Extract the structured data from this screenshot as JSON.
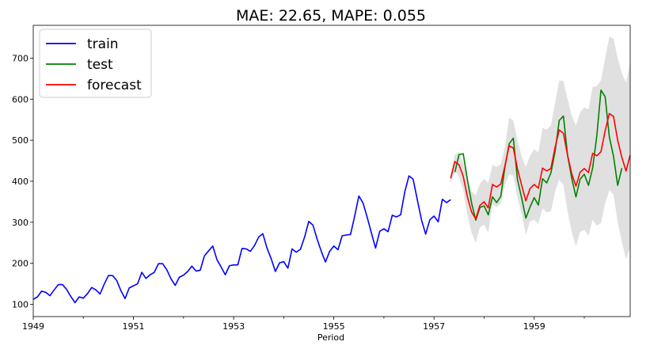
{
  "chart_data": {
    "type": "line",
    "title": "MAE: 22.65, MAPE: 0.055",
    "xlabel": "Period",
    "ylabel": "",
    "xlim": [
      1949.0,
      1960.9167
    ],
    "ylim": [
      70,
      780
    ],
    "x_ticks": [
      1949,
      1951,
      1953,
      1955,
      1957,
      1959
    ],
    "y_ticks": [
      100,
      200,
      300,
      400,
      500,
      600,
      700
    ],
    "grid": false,
    "legend": {
      "placement": "top-left",
      "entries": [
        "train",
        "test",
        "forecast"
      ]
    },
    "x_start": 1949.0,
    "x_step": 0.0833333,
    "series": [
      {
        "name": "train",
        "color": "#0000ff",
        "start_index": 0,
        "values": [
          112,
          118,
          132,
          129,
          121,
          135,
          148,
          148,
          136,
          119,
          104,
          118,
          115,
          126,
          141,
          135,
          125,
          149,
          170,
          170,
          158,
          133,
          114,
          140,
          145,
          150,
          178,
          163,
          172,
          178,
          199,
          199,
          184,
          162,
          146,
          166,
          171,
          180,
          193,
          181,
          183,
          218,
          230,
          242,
          209,
          191,
          172,
          194,
          196,
          196,
          236,
          235,
          229,
          243,
          264,
          272,
          237,
          211,
          180,
          201,
          204,
          188,
          235,
          227,
          234,
          264,
          302,
          293,
          259,
          229,
          203,
          229,
          242,
          233,
          267,
          269,
          270,
          315,
          364,
          347,
          312,
          274,
          237,
          278,
          284,
          277,
          317,
          313,
          318,
          374,
          413,
          405,
          355,
          306,
          271,
          306,
          315,
          301,
          356,
          348,
          355
        ]
      },
      {
        "name": "test",
        "color": "#008000",
        "start_index": 101,
        "values": [
          422,
          465,
          467,
          404,
          347,
          305,
          336,
          340,
          318,
          362,
          348,
          363,
          435,
          491,
          505,
          404,
          359,
          310,
          337,
          360,
          342,
          406,
          396,
          420,
          472,
          548,
          559,
          463,
          407,
          362,
          405,
          417,
          390,
          432,
          511,
          622,
          606,
          508,
          461,
          390,
          432
        ]
      },
      {
        "name": "forecast",
        "color": "#ff0000",
        "start_index": 100,
        "values": [
          407,
          448,
          440,
          412,
          362,
          325,
          308,
          341,
          350,
          335,
          392,
          386,
          393,
          438,
          486,
          481,
          430,
          390,
          352,
          382,
          392,
          383,
          432,
          425,
          431,
          482,
          525,
          517,
          463,
          418,
          388,
          422,
          431,
          421,
          468,
          462,
          472,
          523,
          565,
          558,
          500,
          458,
          425,
          464
        ]
      }
    ],
    "confidence_band": {
      "color": "#cccccc",
      "start_index": 100,
      "upper": [
        420,
        465,
        470,
        446,
        405,
        375,
        366,
        394,
        406,
        396,
        440,
        435,
        441,
        484,
        555,
        548,
        500,
        460,
        435,
        462,
        478,
        470,
        530,
        526,
        536,
        590,
        646,
        644,
        600,
        560,
        535,
        568,
        580,
        575,
        630,
        632,
        646,
        700,
        752,
        748,
        700,
        664,
        640,
        690
      ],
      "lower": [
        393,
        428,
        410,
        378,
        318,
        275,
        250,
        288,
        294,
        274,
        344,
        337,
        345,
        392,
        417,
        414,
        360,
        320,
        269,
        302,
        306,
        296,
        334,
        324,
        326,
        374,
        404,
        390,
        326,
        276,
        241,
        276,
        282,
        267,
        306,
        292,
        298,
        346,
        378,
        368,
        300,
        252,
        210,
        238
      ]
    }
  }
}
